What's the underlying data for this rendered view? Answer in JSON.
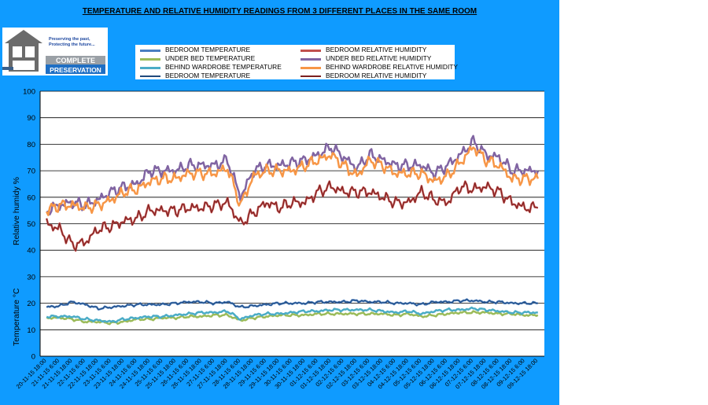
{
  "title": "TEMPERATURE  AND  RELATIVE  HUMIDITY  READINGS  FROM  3  DIFFERENT  PLACES  IN  THE  SAME  ROOM",
  "logo": {
    "tagline_1": "Preserving the past,",
    "tagline_2": "Protecting the future...",
    "name_1": "COMPLETE",
    "name_2": "PRESERVATION"
  },
  "chart_data": {
    "type": "line",
    "title": "TEMPERATURE  AND  RELATIVE  HUMIDITY  READINGS  FROM  3  DIFFERENT  PLACES  IN  THE  SAME  ROOM",
    "ylabel_rh": "Relative humidy %",
    "ylabel_temp": "Temperature °C",
    "ylim": [
      0,
      100
    ],
    "yticks": [
      "0",
      "10",
      "20",
      "30",
      "40",
      "50",
      "60",
      "70",
      "80",
      "90",
      "100"
    ],
    "grid": true,
    "legend_position": "top",
    "categories": [
      "20-11-15 18:00",
      "21-11-15 6:00",
      "21-11-15 18:00",
      "22-11-15 6:00",
      "22-11-15 18:00",
      "23-11-15 6:00",
      "23-11-15 18:00",
      "24-11-15 6:00",
      "24-11-15 18:00",
      "25-11-15 6:00",
      "25-11-15 18:00",
      "26-11-15 6:00",
      "26-11-15 18:00",
      "27-11-15 6:00",
      "27-11-15 18:00",
      "28-11-15 6:00",
      "28-11-15 18:00",
      "29-11-15 6:00",
      "29-11-15 18:00",
      "30-11-15 6:00",
      "30-11-15 18:00",
      "01-12-15 6:00",
      "01-12-15 18:00",
      "02-12-15 6:00",
      "02-12-15 18:00",
      "03-12-15 6:00",
      "03-12-15 18:00",
      "04-12-15 6:00",
      "04-12-15 18:00",
      "05-12-15 6:00",
      "05-12-15 18:00",
      "06-12-15 6:00",
      "06-12-15 18:00",
      "07-12-15 6:00",
      "07-12-15 18:00",
      "08-12-15 6:00",
      "08-12-15 18:00",
      "09-12-15 6:00",
      "09-12-15 18:00"
    ],
    "series": [
      {
        "name": "BEDROOM TEMPERATURE",
        "color": "#4a7ec0",
        "width": 2.5,
        "values": [
          18.5,
          19,
          20.5,
          19.5,
          18,
          18.5,
          19,
          19.5,
          19.5,
          19.5,
          20,
          20.5,
          20.5,
          20,
          20.5,
          18.5,
          19,
          19.5,
          20,
          20,
          20,
          20.5,
          20.5,
          20.5,
          21,
          20.5,
          20.5,
          20,
          20,
          19.5,
          20.5,
          20.5,
          21,
          21,
          20.5,
          20.5,
          20,
          20,
          20
        ]
      },
      {
        "name": "BEDROOM RELATIVE HUMIDITY",
        "color": "#c0504d",
        "width": 2.5,
        "values": [
          50,
          48,
          42,
          43,
          48,
          49,
          51,
          52,
          55,
          55,
          55,
          56,
          56,
          57,
          58,
          50,
          54,
          58,
          56,
          58,
          58,
          62,
          64,
          62,
          62,
          62,
          60,
          58,
          58,
          62,
          59,
          58,
          64,
          63,
          64,
          62,
          58,
          56,
          56
        ]
      },
      {
        "name": "UNDER BED TEMPERATURE",
        "color": "#9bbb59",
        "width": 2.5,
        "values": [
          14.5,
          14.5,
          14,
          13,
          13,
          12.5,
          13,
          14,
          14,
          14.5,
          14.5,
          15,
          15,
          15.5,
          15.5,
          13.5,
          14.5,
          15,
          15.5,
          15.5,
          15.5,
          16,
          16,
          16,
          16,
          16,
          16,
          15.5,
          16,
          15,
          15.5,
          16,
          16.5,
          16.5,
          16.5,
          16,
          16,
          15.5,
          15.5
        ]
      },
      {
        "name": "UNDER BED RELATIVE HUMIDITY",
        "color": "#8064a2",
        "width": 2.5,
        "values": [
          55,
          57,
          58,
          57,
          59,
          62,
          64,
          65,
          70,
          70,
          70,
          72,
          72,
          72,
          74,
          60,
          70,
          72,
          72,
          73,
          74,
          76,
          79,
          75,
          71,
          76,
          74,
          72,
          72,
          72,
          69,
          72,
          76,
          81,
          76,
          75,
          70,
          70,
          70
        ]
      },
      {
        "name": "BEHIND WARDROBE TEMPERATURE",
        "color": "#4bacc6",
        "width": 2.5,
        "values": [
          15,
          15,
          15,
          14,
          13.5,
          13,
          14,
          14.5,
          15,
          15,
          15.5,
          16,
          16.5,
          16.5,
          17,
          14,
          15.5,
          16,
          16,
          16.5,
          17,
          17,
          17.5,
          17.5,
          17.5,
          17.5,
          17,
          16.5,
          17,
          16,
          17,
          17.5,
          17.5,
          18,
          17.5,
          17,
          16.5,
          16.5,
          16.5
        ]
      },
      {
        "name": "BEHIND WARDROBE RELATIVE HUMIDITY",
        "color": "#f79646",
        "width": 2.5,
        "values": [
          55,
          57,
          57,
          56,
          57,
          59,
          62,
          63,
          66,
          67,
          67,
          69,
          69,
          69,
          71,
          57,
          68,
          70,
          70,
          70,
          72,
          74,
          76,
          72,
          68,
          74,
          72,
          69,
          69,
          69,
          66,
          68,
          73,
          79,
          74,
          72,
          67,
          67,
          67
        ]
      },
      {
        "name": "BEDROOM TEMPERATURE",
        "color": "#1f497d",
        "width": 1,
        "values": [
          18.5,
          19,
          20.5,
          19.5,
          18,
          18.5,
          19,
          19.5,
          19.5,
          19.5,
          20,
          20.5,
          20.5,
          20,
          20.5,
          18.5,
          19,
          19.5,
          20,
          20,
          20,
          20.5,
          20.5,
          20.5,
          21,
          20.5,
          20.5,
          20,
          20,
          19.5,
          20.5,
          20.5,
          21,
          21,
          20.5,
          20.5,
          20,
          20,
          20
        ]
      },
      {
        "name": "BEDROOM RELATIVE HUMIDITY",
        "color": "#7b1f1f",
        "width": 1,
        "values": [
          50,
          48,
          42,
          43,
          48,
          49,
          51,
          52,
          55,
          55,
          55,
          56,
          56,
          57,
          58,
          50,
          54,
          58,
          56,
          58,
          58,
          62,
          64,
          62,
          62,
          62,
          60,
          58,
          58,
          62,
          59,
          58,
          64,
          63,
          64,
          62,
          58,
          56,
          56
        ]
      }
    ]
  }
}
